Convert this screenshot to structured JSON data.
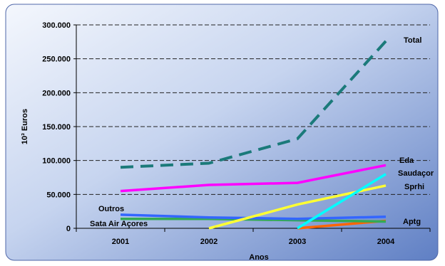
{
  "chart_data": {
    "type": "line",
    "title": "",
    "xlabel": "Anos",
    "ylabel": "10³ Euros",
    "categories": [
      "2001",
      "2002",
      "2003",
      "2004"
    ],
    "ylim": [
      0,
      300000
    ],
    "yticks": [
      0,
      50000,
      100000,
      150000,
      200000,
      250000,
      300000
    ],
    "ytick_labels": [
      "0",
      "50.000",
      "100.000",
      "150.000",
      "200.000",
      "250.000",
      "300.000"
    ],
    "grid": true,
    "legend": "none (series labeled inline)",
    "series": [
      {
        "name": "Total",
        "color": "#1b7a7a",
        "dashed": true,
        "values": [
          90000,
          96000,
          132000,
          276000
        ]
      },
      {
        "name": "Eda",
        "color": "#ff00ff",
        "dashed": false,
        "values": [
          55000,
          64000,
          67000,
          93000
        ]
      },
      {
        "name": "Saudaçor",
        "color": "#00ffff",
        "dashed": false,
        "values": [
          null,
          null,
          0,
          80000
        ]
      },
      {
        "name": "Sprhi",
        "color": "#ffff33",
        "dashed": false,
        "values": [
          null,
          0,
          35000,
          63000
        ]
      },
      {
        "name": "Outros",
        "color": "#3366ff",
        "dashed": false,
        "values": [
          20000,
          16000,
          14000,
          17000
        ]
      },
      {
        "name": "Sata Air Açores",
        "color": "#33aa55",
        "dashed": false,
        "values": [
          14000,
          14000,
          12000,
          10000
        ]
      },
      {
        "name": "Aptg",
        "color": "#ff6600",
        "dashed": false,
        "values": [
          null,
          null,
          0,
          11000
        ]
      }
    ]
  }
}
